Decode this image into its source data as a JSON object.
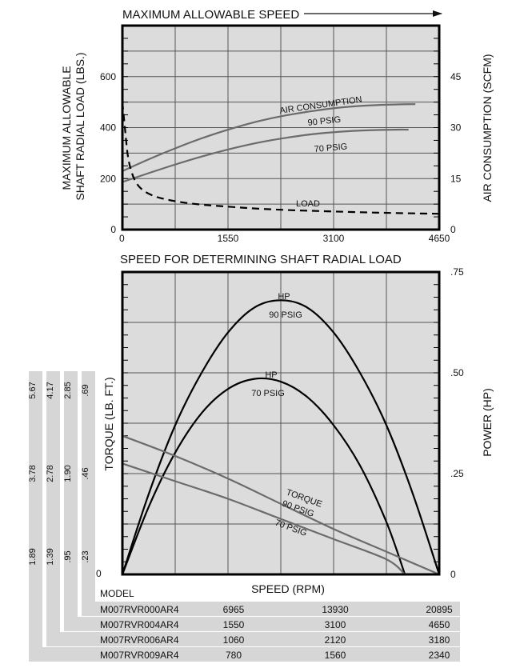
{
  "chart_data": [
    {
      "type": "line",
      "title": "MAXIMUM ALLOWABLE SPEED",
      "xlabel": "SPEED FOR DETERMINING SHAFT RADIAL LOAD",
      "ylabel": "MAXIMUM ALLOWABLE SHAFT RADIAL LOAD (LBS.)",
      "ylabel_lines": [
        "MAXIMUM ALLOWABLE",
        "SHAFT RADIAL LOAD (LBS.)"
      ],
      "y2label": "AIR CONSUMPTION (SCFM)",
      "xlim": [
        0,
        4650
      ],
      "ylim": [
        0,
        800
      ],
      "y2lim": [
        0,
        60
      ],
      "x_ticks": [
        "0",
        "1550",
        "3100",
        "4650"
      ],
      "y_ticks": [
        "0",
        "200",
        "400",
        "600"
      ],
      "y2_ticks": [
        "0",
        "15",
        "30",
        "45"
      ],
      "grid": true,
      "series": [
        {
          "name": "AIR CONSUMPTION 90 PSIG",
          "axis": "right",
          "x": [
            0,
            400,
            800,
            1200,
            1600,
            2000,
            2400,
            2800,
            3200,
            3600,
            4000,
            4300
          ],
          "y": [
            17.2,
            20.8,
            24.1,
            27.1,
            29.7,
            31.9,
            33.6,
            34.9,
            35.9,
            36.5,
            36.8,
            36.9
          ]
        },
        {
          "name": "70 PSIG",
          "axis": "right",
          "x": [
            0,
            400,
            800,
            1200,
            1600,
            2000,
            2400,
            2800,
            3200,
            3600,
            4000,
            4200
          ],
          "y": [
            14.0,
            16.7,
            19.3,
            21.7,
            23.8,
            25.6,
            27.0,
            28.1,
            28.8,
            29.2,
            29.4,
            29.4
          ]
        },
        {
          "name": "LOAD",
          "axis": "left",
          "style": "dashed",
          "x": [
            0,
            40,
            80,
            130,
            200,
            300,
            450,
            650,
            900,
            1200,
            1550,
            2000,
            2500,
            3000,
            3500,
            4000,
            4650
          ],
          "y": [
            500,
            390,
            290,
            230,
            185,
            155,
            133,
            118,
            106,
            97,
            90,
            82,
            76,
            72,
            68,
            65,
            62
          ]
        }
      ],
      "annotations": [
        {
          "text": "AIR CONSUMPTION"
        },
        {
          "text": "90 PSIG"
        },
        {
          "text": "70 PSIG"
        },
        {
          "text": "LOAD"
        }
      ]
    },
    {
      "type": "line",
      "xlabel": "SPEED (RPM)",
      "ylabel": "TORQUE (LB. FT.)",
      "y2label": "POWER (HP)",
      "xlim": [
        0,
        6
      ],
      "ylim": [
        0,
        1.2
      ],
      "y2lim": [
        0,
        0.75
      ],
      "y2_ticks": [
        "0",
        ".25",
        ".50",
        ".75"
      ],
      "grid": true,
      "series": [
        {
          "name": "HP 90 PSIG",
          "axis": "right",
          "x": [
            0,
            0.5,
            1,
            1.5,
            2,
            2.5,
            3,
            3.5,
            4,
            4.5,
            5,
            5.5,
            6
          ],
          "y": [
            0,
            0.2,
            0.37,
            0.5,
            0.6,
            0.662,
            0.68,
            0.662,
            0.6,
            0.5,
            0.37,
            0.2,
            0
          ]
        },
        {
          "name": "HP 70 PSIG",
          "axis": "right",
          "x": [
            0,
            0.5,
            1,
            1.5,
            2,
            2.5,
            3,
            3.5,
            4,
            4.5,
            5,
            5.35
          ],
          "y": [
            0,
            0.168,
            0.302,
            0.4,
            0.46,
            0.485,
            0.478,
            0.44,
            0.37,
            0.27,
            0.13,
            0
          ]
        },
        {
          "name": "TORQUE 90 PSIG",
          "axis": "left",
          "x": [
            0,
            1,
            2,
            3,
            4,
            5,
            6
          ],
          "y": [
            0.55,
            0.47,
            0.38,
            0.28,
            0.18,
            0.09,
            0
          ]
        },
        {
          "name": "70 PSIG",
          "axis": "left",
          "x": [
            0,
            1,
            2,
            3,
            4,
            5,
            5.35
          ],
          "y": [
            0.44,
            0.37,
            0.3,
            0.22,
            0.14,
            0.06,
            0
          ]
        }
      ],
      "annotations": [
        {
          "text": "HP"
        },
        {
          "text": "90 PSIG"
        },
        {
          "text": "HP"
        },
        {
          "text": "70 PSIG"
        },
        {
          "text": "TORQUE"
        },
        {
          "text": "90 PSIG"
        },
        {
          "text": "70 PSIG"
        }
      ],
      "torque_scales": [
        {
          "model": "M007RVR000AR4",
          "ticks": [
            "0",
            ".23",
            ".46",
            ".69"
          ]
        },
        {
          "model": "M007RVR004AR4",
          "ticks": [
            "0",
            ".95",
            "1.90",
            "2.85"
          ]
        },
        {
          "model": "M007RVR006AR4",
          "ticks": [
            "0",
            "1.39",
            "2.78",
            "4.17"
          ]
        },
        {
          "model": "M007RVR009AR4",
          "ticks": [
            "0",
            "1.89",
            "3.78",
            "5.67"
          ]
        }
      ],
      "zero_label": "0",
      "model_header": "MODEL",
      "speed_table": [
        {
          "model": "M007RVR000AR4",
          "speeds": [
            "6965",
            "13930",
            "20895"
          ]
        },
        {
          "model": "M007RVR004AR4",
          "speeds": [
            "1550",
            "3100",
            "4650"
          ]
        },
        {
          "model": "M007RVR006AR4",
          "speeds": [
            "1060",
            "2120",
            "3180"
          ]
        },
        {
          "model": "M007RVR009AR4",
          "speeds": [
            "780",
            "1560",
            "2340"
          ]
        }
      ]
    }
  ]
}
